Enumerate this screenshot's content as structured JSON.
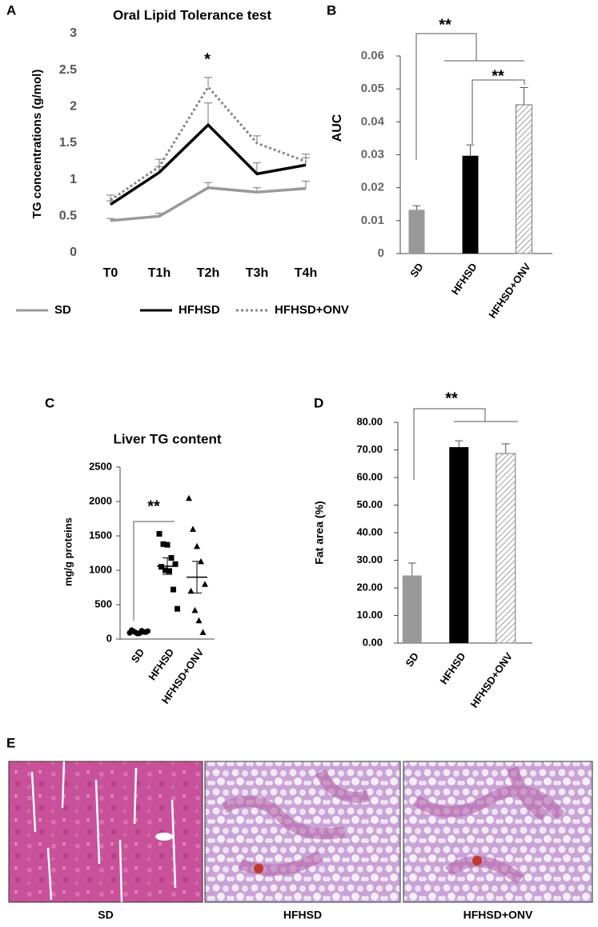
{
  "chart_data": [
    {
      "panel": "A",
      "type": "line",
      "title": "Oral Lipid Tolerance test",
      "y_label": "TG  concentrations (g/mol)",
      "categories": [
        "T0",
        "T1h",
        "T2h",
        "T3h",
        "T4h"
      ],
      "ylim": [
        0,
        3
      ],
      "yticks": [
        0,
        0.5,
        1,
        1.5,
        2,
        2.5,
        3
      ],
      "legend": "bottom",
      "annotations": [
        "*"
      ],
      "series": [
        {
          "name": "SD",
          "color": "#999999",
          "style": "solid",
          "values": [
            0.44,
            0.5,
            0.89,
            0.83,
            0.88
          ],
          "errors": [
            0.03,
            0.04,
            0.07,
            0.06,
            0.1
          ]
        },
        {
          "name": "HFHSD",
          "color": "#000000",
          "style": "solid",
          "values": [
            0.66,
            1.1,
            1.75,
            1.08,
            1.2
          ],
          "errors": [
            0.05,
            0.08,
            0.3,
            0.15,
            0.1
          ]
        },
        {
          "name": "HFHSD+ONV",
          "color": "#888888",
          "style": "dotted",
          "values": [
            0.72,
            1.18,
            2.27,
            1.5,
            1.25
          ],
          "errors": [
            0.07,
            0.1,
            0.13,
            0.1,
            0.1
          ]
        }
      ]
    },
    {
      "panel": "B",
      "type": "bar",
      "y_label": "AUC",
      "categories": [
        "SD",
        "HFHSD",
        "HFHSD+ONV"
      ],
      "ylim": [
        0,
        0.06
      ],
      "yticks": [
        0,
        0.01,
        0.02,
        0.03,
        0.04,
        0.05,
        0.06
      ],
      "annotations": [
        "**",
        "**"
      ],
      "values": [
        0.0133,
        0.0297,
        0.0452
      ],
      "errors": [
        0.0012,
        0.0033,
        0.0052
      ],
      "colors": [
        "#999999",
        "#000000",
        "#ffffff"
      ],
      "fills": [
        "solid",
        "solid",
        "hatched"
      ]
    },
    {
      "panel": "C",
      "type": "dot",
      "title": "Liver TG content",
      "y_label": "mg/g proteins",
      "categories": [
        "SD",
        "HFHSD",
        "HFHSD+ONV"
      ],
      "ylim": [
        0,
        2500
      ],
      "yticks": [
        0,
        500,
        1000,
        1500,
        2000,
        2500
      ],
      "annotations": [
        "**"
      ],
      "markers": [
        "circle",
        "square",
        "triangle"
      ],
      "color": "#000000",
      "values": [
        [
          90,
          110,
          80,
          120,
          100,
          130,
          95,
          85,
          105,
          115
        ],
        [
          1530,
          1380,
          1370,
          1180,
          1090,
          1050,
          1000,
          990,
          720,
          440
        ],
        [
          2050,
          1600,
          1350,
          1130,
          800,
          700,
          420,
          270,
          100
        ]
      ],
      "means": [
        100,
        1060,
        900
      ],
      "sem": [
        15,
        120,
        230
      ]
    },
    {
      "panel": "D",
      "type": "bar",
      "y_label": "Fat area (%)",
      "categories": [
        "SD",
        "HFHSD",
        "HFHSD+ONV"
      ],
      "ylim": [
        0,
        80
      ],
      "yticks": [
        {
          "value": 0,
          "label": "0.00"
        },
        {
          "value": 10,
          "label": "10.00"
        },
        {
          "value": 20,
          "label": "20.00"
        },
        {
          "value": 30,
          "label": "30.00"
        },
        {
          "value": 40,
          "label": "40.00"
        },
        {
          "value": 50,
          "label": "50.00"
        },
        {
          "value": 60,
          "label": "60.00"
        },
        {
          "value": 70,
          "label": "70.00"
        },
        {
          "value": 80,
          "label": "80.00"
        }
      ],
      "annotations": [
        "**"
      ],
      "values": [
        24.5,
        71,
        68.7
      ],
      "errors": [
        4.5,
        2.3,
        3.5
      ],
      "colors": [
        "#999999",
        "#000000",
        "#ffffff"
      ],
      "fills": [
        "solid",
        "solid",
        "hatched"
      ]
    }
  ],
  "figure_e": {
    "panel": "E",
    "labels": [
      "SD",
      "HFHSD",
      "HFHSD+ONV"
    ]
  }
}
